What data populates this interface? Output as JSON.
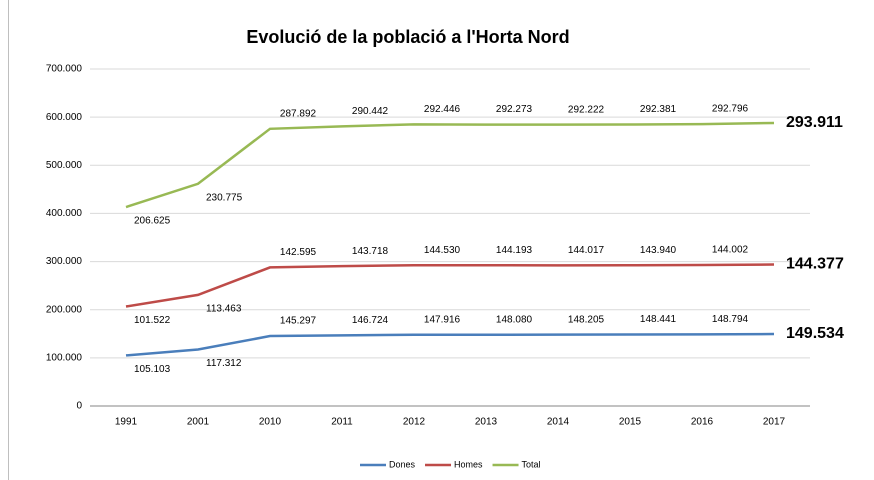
{
  "chart_data": {
    "type": "line",
    "stacked": true,
    "title": "Evolució de la població a l'Horta Nord",
    "categories": [
      "1991",
      "2001",
      "2010",
      "2011",
      "2012",
      "2013",
      "2014",
      "2015",
      "2016",
      "2017"
    ],
    "series": [
      {
        "name": "Dones",
        "color": "#4a7ebb",
        "values": [
          105103,
          117312,
          145297,
          146724,
          147916,
          148080,
          148205,
          148441,
          148794,
          149534
        ],
        "value_labels": [
          "105.103",
          "117.312",
          "145.297",
          "146.724",
          "147.916",
          "148.080",
          "148.205",
          "148.441",
          "148.794",
          "149.534"
        ]
      },
      {
        "name": "Homes",
        "color": "#be4b48",
        "values": [
          101522,
          113463,
          142595,
          143718,
          144530,
          144193,
          144017,
          143940,
          144002,
          144377
        ],
        "value_labels": [
          "101.522",
          "113.463",
          "142.595",
          "143.718",
          "144.530",
          "144.193",
          "144.017",
          "143.940",
          "144.002",
          "144.377"
        ]
      },
      {
        "name": "Total",
        "color": "#98b954",
        "values": [
          206625,
          230775,
          287892,
          290442,
          292446,
          292273,
          292222,
          292381,
          292796,
          293911
        ],
        "value_labels": [
          "206.625",
          "230.775",
          "287.892",
          "290.442",
          "292.446",
          "292.273",
          "292.222",
          "292.381",
          "292.796",
          "293.911"
        ]
      }
    ],
    "ylim": [
      0,
      700000
    ],
    "yticks": [
      0,
      {
        "value": 100000,
        "label": "100.000"
      },
      {
        "value": 200000,
        "label": "200.000"
      },
      {
        "value": 300000,
        "label": "300.000"
      },
      {
        "value": 400000,
        "label": "400.000"
      },
      {
        "value": 500000,
        "label": "500.000"
      },
      {
        "value": 600000,
        "label": "600.000"
      },
      {
        "value": 700000,
        "label": "700.000"
      }
    ],
    "grid": true,
    "legend": "bottom"
  }
}
